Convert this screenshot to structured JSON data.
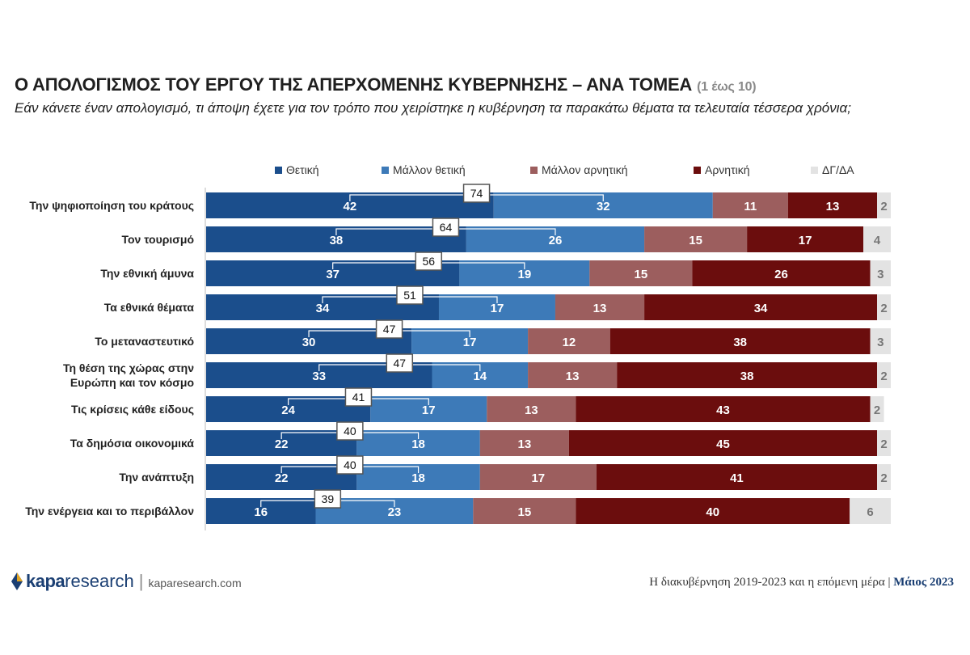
{
  "header": {
    "title": "Ο ΑΠΟΛΟΓΙΣΜΟΣ ΤΟΥ ΕΡΓΟΥ ΤΗΣ ΑΠΕΡΧΟΜΕΝΗΣ ΚΥΒΕΡΝΗΣΗΣ – ΑΝΑ ΤΟΜΕΑ",
    "scale_note": "(1 έως 10)",
    "subtitle": "Εάν κάνετε έναν απολογισμό, τι άποψη έχετε για τον τρόπο που χειρίστηκε η κυβέρνηση τα παρακάτω θέματα τα τελευταία τέσσερα χρόνια;"
  },
  "chart_data": {
    "type": "bar",
    "orientation": "horizontal",
    "stacked": true,
    "legend_position": "top",
    "grid": false,
    "categories": [
      "Την ψηφιοποίηση του κράτους",
      "Τον τουρισμό",
      "Την εθνική άμυνα",
      "Τα εθνικά θέματα",
      "Το μεταναστευτικό",
      "Τη θέση της χώρας στην\nΕυρώπη και τον κόσμο",
      "Τις κρίσεις κάθε είδους",
      "Τα δημόσια οικονομικά",
      "Την ανάπτυξη",
      "Την ενέργεια και το περιβάλλον"
    ],
    "series": [
      {
        "name": "Θετική",
        "color": "#1b4e8c",
        "values": [
          42,
          38,
          37,
          34,
          30,
          33,
          24,
          22,
          22,
          16
        ]
      },
      {
        "name": "Μάλλον θετική",
        "color": "#3d7ab8",
        "values": [
          32,
          26,
          19,
          17,
          17,
          14,
          17,
          18,
          18,
          23
        ]
      },
      {
        "name": "Μάλλον αρνητική",
        "color": "#9c5e5e",
        "values": [
          11,
          15,
          15,
          13,
          12,
          13,
          13,
          13,
          17,
          15
        ]
      },
      {
        "name": "Αρνητική",
        "color": "#6b0d0d",
        "values": [
          13,
          17,
          26,
          34,
          38,
          38,
          43,
          45,
          41,
          40
        ]
      },
      {
        "name": "ΔΓ/ΔΑ",
        "color": "#e3e3e3",
        "values": [
          2,
          4,
          3,
          2,
          3,
          2,
          2,
          2,
          2,
          6
        ]
      }
    ],
    "positive_totals": [
      74,
      64,
      56,
      51,
      47,
      47,
      41,
      40,
      40,
      39
    ]
  },
  "footer": {
    "brand_bold": "kapa",
    "brand_light": "research",
    "url": "kaparesearch.com",
    "report": "Η διακυβέρνηση 2019-2023 και η επόμενη μέρα",
    "separator": "|",
    "date": "Μάιος 2023"
  }
}
